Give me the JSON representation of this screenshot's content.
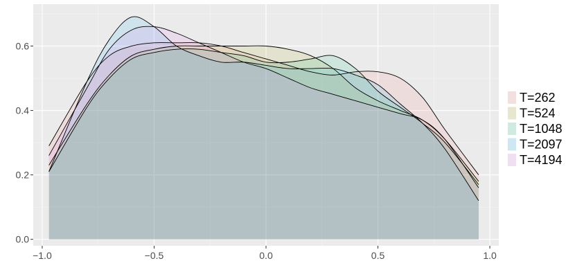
{
  "chart_data": {
    "type": "area",
    "title": "",
    "xlabel": "",
    "ylabel": "",
    "xlim": [
      -1.04,
      1.04
    ],
    "ylim": [
      -0.02,
      0.73
    ],
    "x_ticks": [
      -1.0,
      -0.5,
      0.0,
      0.5,
      1.0
    ],
    "x_tick_labels": [
      "−1.0",
      "−0.5",
      "0.0",
      "0.5",
      "1.0"
    ],
    "y_ticks": [
      0.0,
      0.2,
      0.4,
      0.6
    ],
    "y_tick_labels": [
      "0.0",
      "0.2",
      "0.4",
      "0.6"
    ],
    "grid": true,
    "legend_position": "right",
    "x": [
      -0.97,
      -0.8,
      -0.7,
      -0.6,
      -0.5,
      -0.4,
      -0.3,
      -0.2,
      -0.1,
      0.0,
      0.1,
      0.2,
      0.3,
      0.4,
      0.5,
      0.6,
      0.7,
      0.8,
      0.95
    ],
    "series": [
      {
        "name": "T=262",
        "color": "#F8766D",
        "values": [
          0.29,
          0.49,
          0.57,
          0.6,
          0.61,
          0.61,
          0.61,
          0.6,
          0.58,
          0.56,
          0.54,
          0.52,
          0.51,
          0.52,
          0.52,
          0.5,
          0.44,
          0.34,
          0.2
        ]
      },
      {
        "name": "T=524",
        "color": "#A3A500",
        "values": [
          0.23,
          0.42,
          0.51,
          0.57,
          0.59,
          0.6,
          0.6,
          0.6,
          0.6,
          0.6,
          0.59,
          0.57,
          0.53,
          0.47,
          0.43,
          0.4,
          0.37,
          0.31,
          0.18
        ]
      },
      {
        "name": "T=1048",
        "color": "#00BF7D",
        "values": [
          0.21,
          0.41,
          0.5,
          0.56,
          0.58,
          0.59,
          0.59,
          0.58,
          0.57,
          0.55,
          0.55,
          0.56,
          0.57,
          0.53,
          0.46,
          0.41,
          0.36,
          0.3,
          0.17
        ]
      },
      {
        "name": "T=2097",
        "color": "#00B0F6",
        "values": [
          0.21,
          0.49,
          0.62,
          0.69,
          0.66,
          0.6,
          0.57,
          0.55,
          0.55,
          0.54,
          0.53,
          0.53,
          0.53,
          0.51,
          0.48,
          0.42,
          0.36,
          0.28,
          0.12
        ]
      },
      {
        "name": "T=4194",
        "color": "#E76BF3",
        "values": [
          0.26,
          0.47,
          0.59,
          0.65,
          0.66,
          0.64,
          0.61,
          0.58,
          0.55,
          0.53,
          0.5,
          0.47,
          0.45,
          0.43,
          0.41,
          0.39,
          0.37,
          0.31,
          0.16
        ]
      }
    ]
  }
}
